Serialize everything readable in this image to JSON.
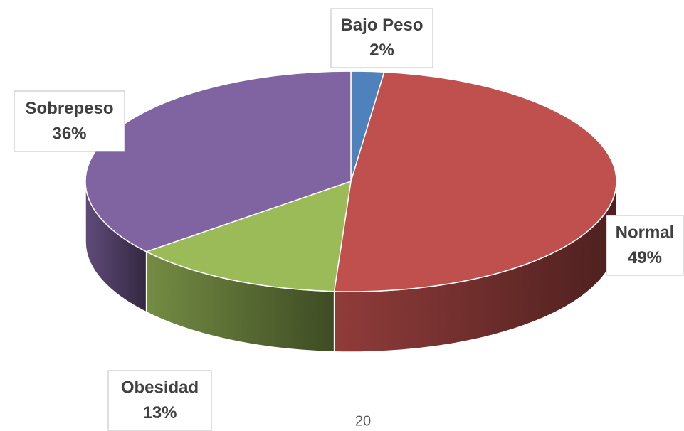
{
  "chart_data": {
    "type": "pie3d",
    "categories": [
      "Bajo Peso",
      "Normal",
      "Obesidad",
      "Sobrepeso"
    ],
    "values": [
      2,
      49,
      13,
      36
    ],
    "value_labels": [
      "2%",
      "49%",
      "13%",
      "36%"
    ],
    "colors": [
      "#4f81bd",
      "#c0504d",
      "#9bbb59",
      "#8064a2"
    ]
  },
  "page_number": "20"
}
